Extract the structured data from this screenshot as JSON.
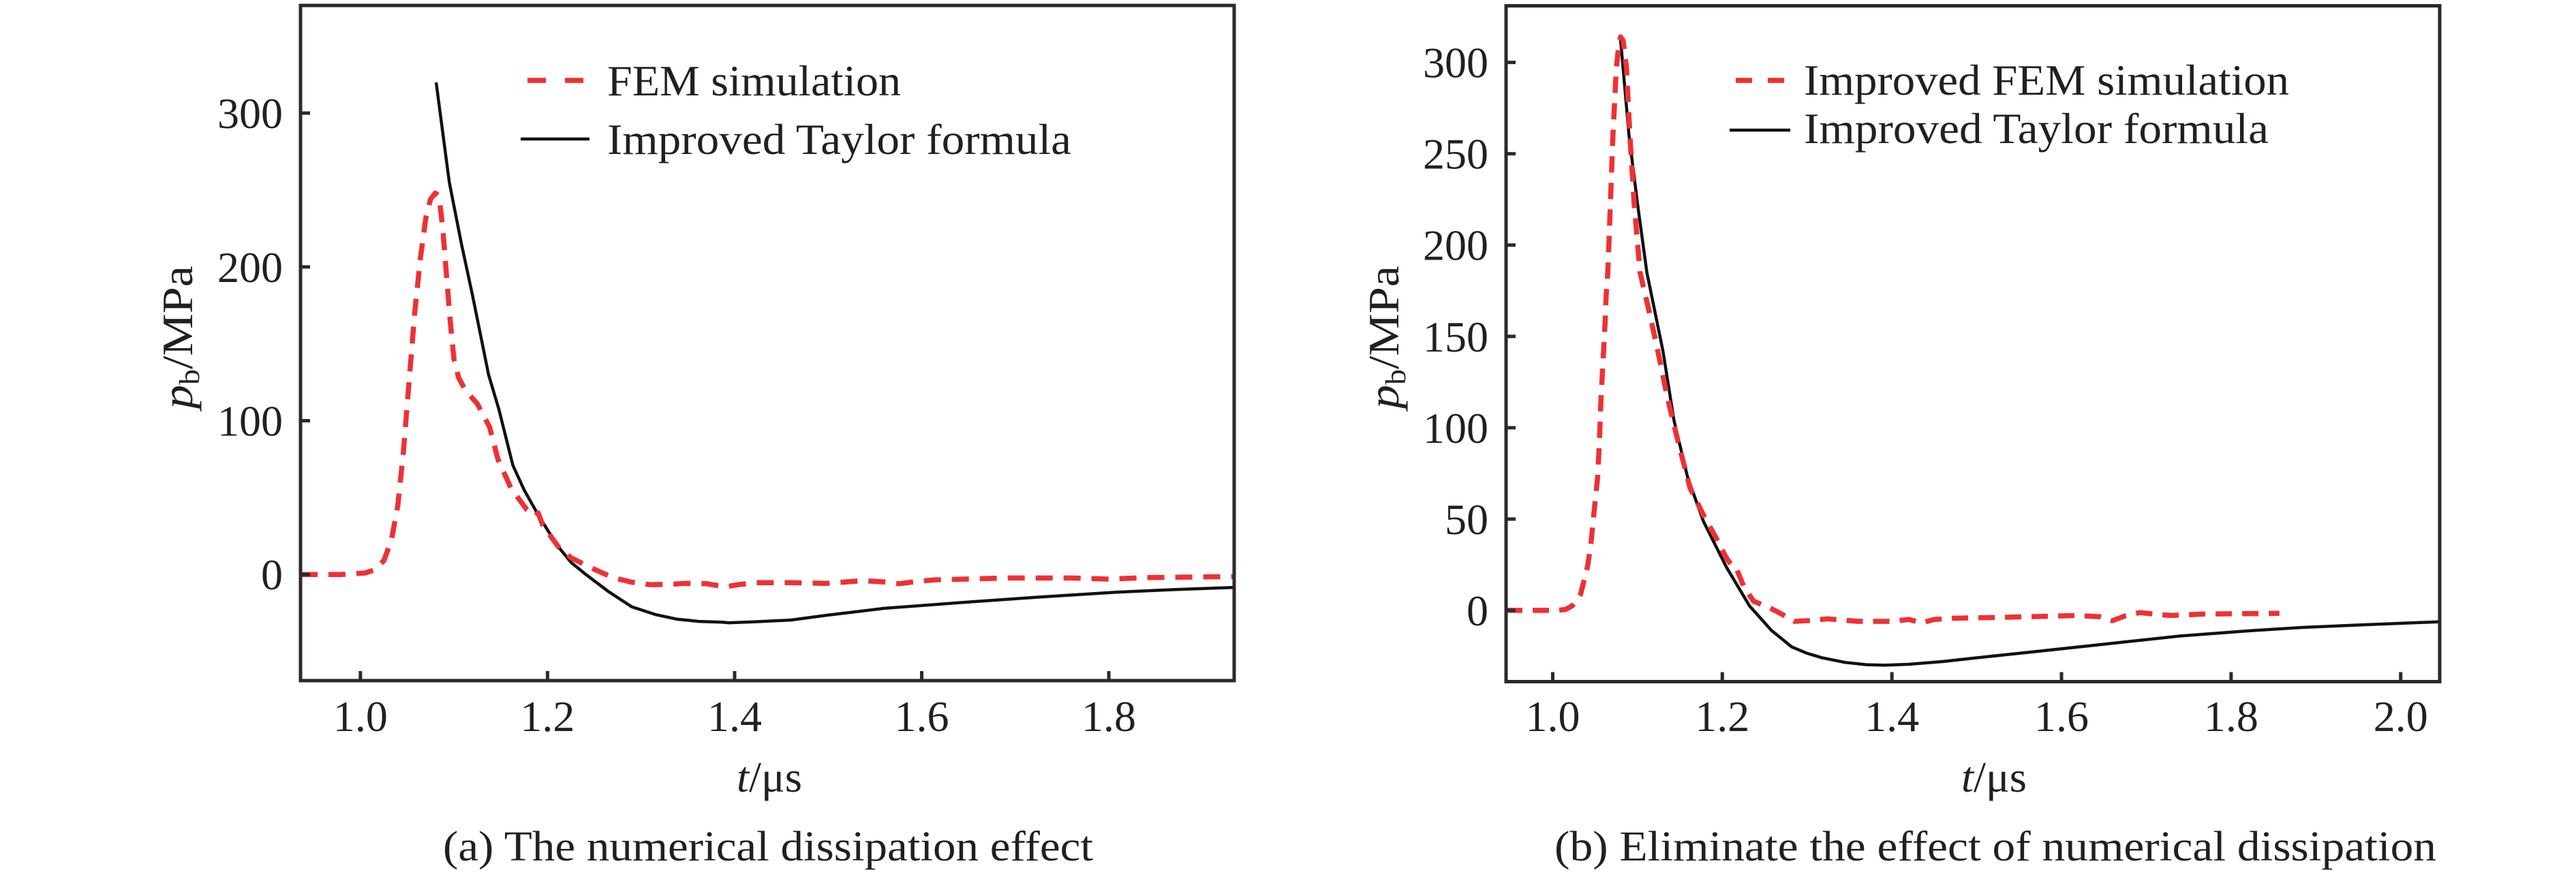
{
  "colors": {
    "fem": "#ee3134",
    "taylor": "#111111",
    "frame": "#2b2a2a",
    "text": "#231f20"
  },
  "chart_data": [
    {
      "type": "line",
      "panel": "a",
      "caption": "(a) The numerical dissipation effect",
      "xlabel_var": "t",
      "xlabel_unit": "/μs",
      "ylabel_var": "p",
      "ylabel_sub": "b",
      "ylabel_unit": "/MPa",
      "xlim": [
        0.936,
        1.934
      ],
      "ylim": [
        -69,
        370
      ],
      "xticks": [
        1.0,
        1.2,
        1.4,
        1.6,
        1.8
      ],
      "xtick_labels": [
        "1.0",
        "1.2",
        "1.4",
        "1.6",
        "1.8"
      ],
      "yticks": [
        0,
        100,
        200,
        300
      ],
      "ytick_labels": [
        "0",
        "100",
        "200",
        "300"
      ],
      "grid": false,
      "legend_position": "top-right",
      "series": [
        {
          "name": "FEM simulation",
          "style": "dashed",
          "x": [
            0.936,
            0.98,
            1.005,
            1.015,
            1.025,
            1.033,
            1.04,
            1.046,
            1.052,
            1.058,
            1.064,
            1.07,
            1.075,
            1.08,
            1.084,
            1.088,
            1.092,
            1.096,
            1.1,
            1.105,
            1.112,
            1.125,
            1.138,
            1.147,
            1.161,
            1.178,
            1.187,
            1.19,
            1.195,
            1.212,
            1.225,
            1.241,
            1.255,
            1.27,
            1.29,
            1.309,
            1.33,
            1.348,
            1.37,
            1.39,
            1.405,
            1.423,
            1.46,
            1.498,
            1.537,
            1.56,
            1.576,
            1.595,
            1.614,
            1.692,
            1.76,
            1.8,
            1.84,
            1.934
          ],
          "y": [
            0,
            0,
            1,
            3,
            9,
            22,
            45,
            80,
            125,
            170,
            205,
            232,
            244,
            248,
            246,
            225,
            195,
            165,
            140,
            128,
            120,
            111,
            96,
            75,
            56,
            42,
            38,
            40,
            32,
            17.7,
            11,
            6,
            2,
            -2,
            -5,
            -6.6,
            -6.4,
            -5.8,
            -6,
            -8,
            -6.5,
            -5.3,
            -5.3,
            -5.8,
            -4,
            -4.8,
            -6,
            -4.5,
            -3.5,
            -2.3,
            -2.3,
            -3,
            -2,
            -1.3
          ]
        },
        {
          "name": "Improved Taylor formula",
          "style": "solid",
          "x": [
            1.081,
            1.095,
            1.108,
            1.12,
            1.137,
            1.148,
            1.163,
            1.175,
            1.188,
            1.2,
            1.212,
            1.225,
            1.241,
            1.265,
            1.29,
            1.315,
            1.338,
            1.362,
            1.387,
            1.394,
            1.42,
            1.46,
            1.498,
            1.56,
            1.654,
            1.73,
            1.808,
            1.87,
            1.934
          ],
          "y": [
            320,
            255,
            215,
            181,
            130,
            107.5,
            71,
            55,
            41,
            29,
            17.7,
            8,
            0,
            -11,
            -21,
            -26,
            -29,
            -30.5,
            -31,
            -31.4,
            -30.8,
            -29.6,
            -26.5,
            -22,
            -17.7,
            -14.5,
            -11.5,
            -9.8,
            -8.4
          ]
        }
      ]
    },
    {
      "type": "line",
      "panel": "b",
      "caption": "(b) Eliminate the effect of numerical dissipation",
      "xlabel_var": "t",
      "xlabel_unit": "/μs",
      "ylabel_var": "p",
      "ylabel_sub": "b",
      "ylabel_unit": "/MPa",
      "xlim": [
        0.945,
        2.046
      ],
      "ylim": [
        -39,
        331
      ],
      "xticks": [
        1.0,
        1.2,
        1.4,
        1.6,
        1.8,
        2.0
      ],
      "xtick_labels": [
        "1.0",
        "1.2",
        "1.4",
        "1.6",
        "1.8",
        "2.0"
      ],
      "yticks": [
        0,
        50,
        100,
        150,
        200,
        250,
        300
      ],
      "ytick_labels": [
        "0",
        "50",
        "100",
        "150",
        "200",
        "250",
        "300"
      ],
      "grid": false,
      "legend_position": "top-right",
      "series": [
        {
          "name": "Improved FEM simulation",
          "style": "dashed",
          "x": [
            0.945,
            1.004,
            1.015,
            1.023,
            1.033,
            1.041,
            1.045,
            1.049,
            1.053,
            1.055,
            1.057,
            1.06,
            1.062,
            1.063,
            1.065,
            1.068,
            1.071,
            1.075,
            1.078,
            1.08,
            1.083,
            1.087,
            1.091,
            1.096,
            1.103,
            1.114,
            1.124,
            1.135,
            1.148,
            1.162,
            1.178,
            1.194,
            1.205,
            1.212,
            1.216,
            1.226,
            1.237,
            1.256,
            1.27,
            1.285,
            1.305,
            1.324,
            1.36,
            1.399,
            1.42,
            1.435,
            1.45,
            1.471,
            1.539,
            1.62,
            1.645,
            1.66,
            1.675,
            1.692,
            1.71,
            1.728,
            1.768,
            1.857
          ],
          "y": [
            0,
            0,
            0.5,
            2.5,
            9,
            24,
            36,
            55,
            73,
            92,
            117,
            142,
            160,
            172,
            185,
            223,
            260,
            297,
            310,
            314,
            312,
            297,
            260,
            223,
            185,
            163,
            142,
            117,
            92,
            67,
            52,
            38.6,
            28.6,
            24,
            23.6,
            12.4,
            5,
            1.4,
            -2,
            -6,
            -5.5,
            -4.6,
            -6,
            -6,
            -5,
            -6.8,
            -5,
            -4.3,
            -3.7,
            -2.8,
            -3.5,
            -5.6,
            -3,
            -1.2,
            -2,
            -2.8,
            -2,
            -1.6
          ]
        },
        {
          "name": "Improved Taylor formula",
          "style": "solid",
          "x": [
            1.08,
            1.09,
            1.1,
            1.111,
            1.119,
            1.13,
            1.143,
            1.159,
            1.178,
            1.205,
            1.232,
            1.258,
            1.282,
            1.3,
            1.318,
            1.345,
            1.37,
            1.391,
            1.42,
            1.46,
            1.499,
            1.56,
            1.62,
            1.68,
            1.74,
            1.82,
            1.885,
            1.96,
            2.046
          ],
          "y": [
            312.5,
            260,
            222.6,
            185,
            167,
            142,
            104,
            73,
            48.5,
            23.6,
            2.5,
            -11,
            -20,
            -23.5,
            -26,
            -28.5,
            -29.7,
            -30,
            -29.5,
            -28,
            -26,
            -23,
            -20,
            -17,
            -14,
            -11.2,
            -9.3,
            -7.8,
            -6.2
          ]
        }
      ]
    }
  ]
}
